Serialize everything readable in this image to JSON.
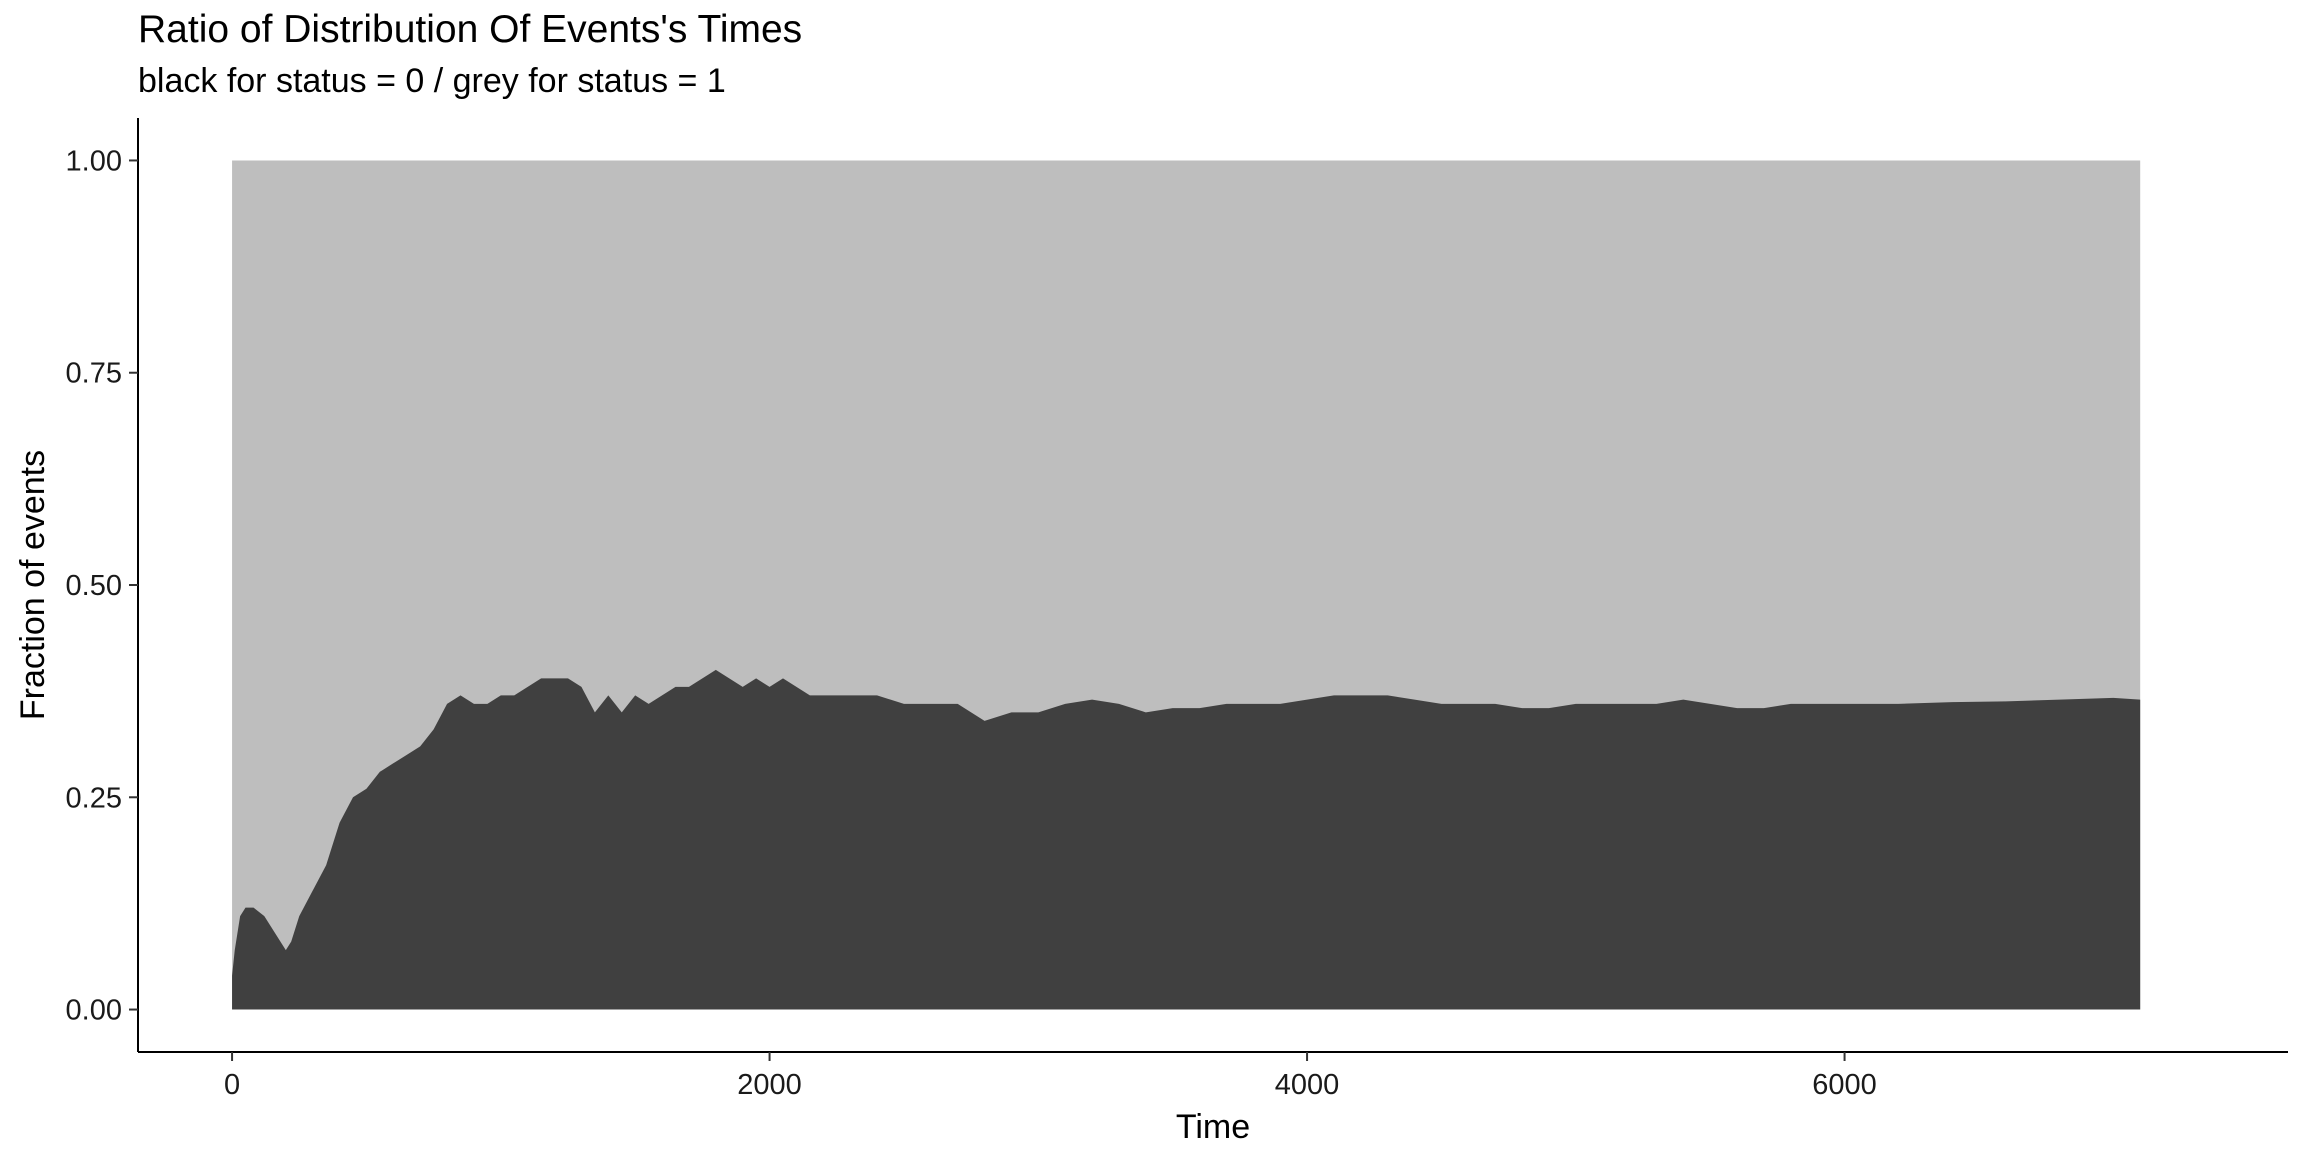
{
  "chart_data": {
    "type": "area",
    "title": "Ratio of Distribution Of Events's Times",
    "subtitle": "black for status = 0 / grey for status = 1",
    "xlabel": "Time",
    "ylabel": "Fraction of events",
    "xlim": [
      -350,
      7650
    ],
    "ylim": [
      -0.05,
      1.05
    ],
    "x_ticks": [
      0,
      2000,
      4000,
      6000
    ],
    "x_tick_labels": [
      "0",
      "2000",
      "4000",
      "6000"
    ],
    "y_ticks": [
      0,
      0.25,
      0.5,
      0.75,
      1.0
    ],
    "y_tick_labels": [
      "0.00",
      "0.25",
      "0.50",
      "0.75",
      "1.00"
    ],
    "grid": false,
    "legend": "none",
    "series": [
      {
        "status": "1",
        "color": "#bebebe",
        "x": [
          0,
          7100
        ],
        "values": [
          1.0,
          1.0
        ]
      },
      {
        "status": "0",
        "color": "#404040",
        "x": [
          0,
          10,
          30,
          50,
          80,
          120,
          160,
          200,
          220,
          250,
          300,
          350,
          400,
          450,
          500,
          550,
          600,
          650,
          700,
          750,
          800,
          850,
          900,
          950,
          1000,
          1050,
          1100,
          1150,
          1200,
          1250,
          1300,
          1350,
          1400,
          1450,
          1500,
          1550,
          1600,
          1650,
          1700,
          1750,
          1800,
          1850,
          1900,
          1950,
          2000,
          2050,
          2100,
          2150,
          2200,
          2300,
          2400,
          2500,
          2600,
          2700,
          2800,
          2900,
          3000,
          3100,
          3200,
          3300,
          3400,
          3500,
          3600,
          3700,
          3800,
          3900,
          4000,
          4100,
          4200,
          4300,
          4400,
          4500,
          4600,
          4700,
          4800,
          4900,
          5000,
          5100,
          5200,
          5300,
          5400,
          5500,
          5600,
          5700,
          5800,
          5900,
          6000,
          6200,
          6400,
          6600,
          6800,
          7000,
          7100
        ],
        "values": [
          0.04,
          0.07,
          0.11,
          0.12,
          0.12,
          0.11,
          0.09,
          0.07,
          0.08,
          0.11,
          0.14,
          0.17,
          0.22,
          0.25,
          0.26,
          0.28,
          0.29,
          0.3,
          0.31,
          0.33,
          0.36,
          0.37,
          0.36,
          0.36,
          0.37,
          0.37,
          0.38,
          0.39,
          0.39,
          0.39,
          0.38,
          0.35,
          0.37,
          0.35,
          0.37,
          0.36,
          0.37,
          0.38,
          0.38,
          0.39,
          0.4,
          0.39,
          0.38,
          0.39,
          0.38,
          0.39,
          0.38,
          0.37,
          0.37,
          0.37,
          0.37,
          0.36,
          0.36,
          0.36,
          0.34,
          0.35,
          0.35,
          0.36,
          0.365,
          0.36,
          0.35,
          0.355,
          0.355,
          0.36,
          0.36,
          0.36,
          0.365,
          0.37,
          0.37,
          0.37,
          0.365,
          0.36,
          0.36,
          0.36,
          0.355,
          0.355,
          0.36,
          0.36,
          0.36,
          0.36,
          0.365,
          0.36,
          0.355,
          0.355,
          0.36,
          0.36,
          0.36,
          0.36,
          0.362,
          0.363,
          0.365,
          0.367,
          0.365
        ]
      }
    ]
  }
}
